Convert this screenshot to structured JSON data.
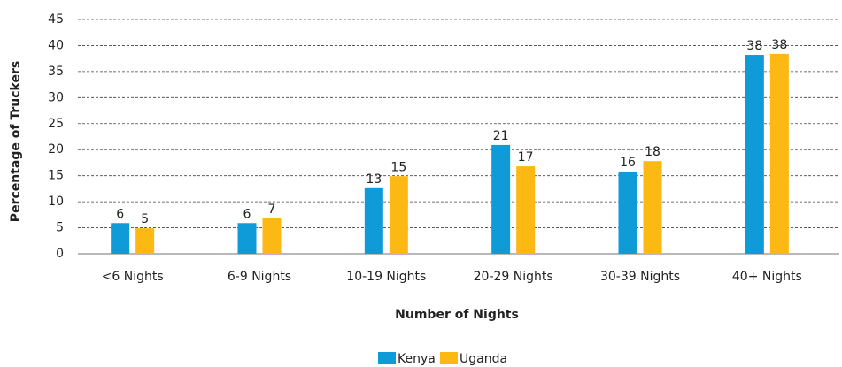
{
  "chart_data": {
    "type": "bar",
    "x_label": "Number of Nights",
    "y_label": "Percentage of Truckers",
    "categories": [
      "<6 Nights",
      "6-9 Nights",
      "10-19 Nights",
      "20-29 Nights",
      "30-39 Nights",
      "40+ Nights"
    ],
    "series": [
      {
        "name": "Kenya",
        "color": "#0f9ad8",
        "values": [
          5.9,
          5.9,
          12.6,
          20.9,
          15.8,
          38.2
        ],
        "value_labels": [
          "6",
          "6",
          "13",
          "21",
          "16",
          "38"
        ]
      },
      {
        "name": "Uganda",
        "color": "#fdb913",
        "values": [
          4.9,
          6.8,
          14.9,
          16.8,
          17.8,
          38.4
        ],
        "value_labels": [
          "5",
          "7",
          "15",
          "17",
          "18",
          "38"
        ]
      }
    ],
    "ylim": [
      0,
      45
    ],
    "yticks": [
      0,
      5,
      10,
      15,
      20,
      25,
      30,
      35,
      40,
      45
    ],
    "grid": true,
    "legend": "bottom"
  }
}
